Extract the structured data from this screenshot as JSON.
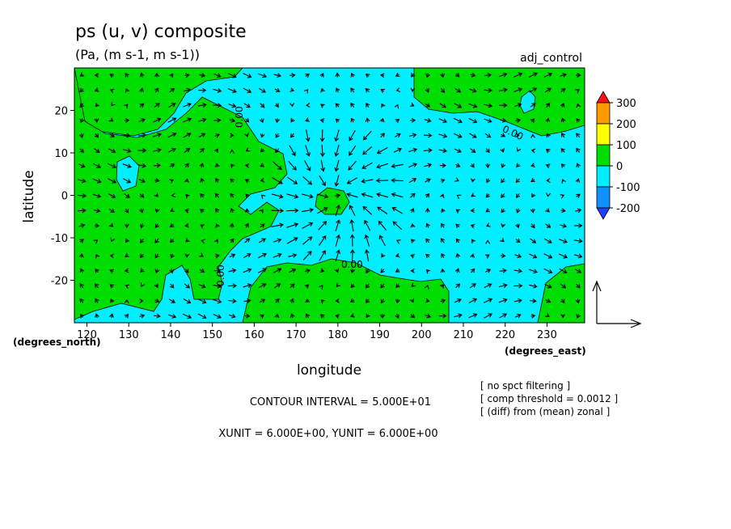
{
  "chart_data": {
    "type": "heatmap",
    "title": "ps (u, v) composite",
    "subtitle": "(Pa, (m s-1, m s-1))",
    "run_label": "adj_control",
    "xlabel": "longitude",
    "ylabel": "latitude",
    "x_unit_label": "(degrees_east)",
    "y_unit_label": "(degrees_north)",
    "xlim": [
      117,
      239
    ],
    "ylim": [
      -30,
      30
    ],
    "x_ticks": [
      120,
      130,
      140,
      150,
      160,
      170,
      180,
      190,
      200,
      210,
      220,
      230
    ],
    "y_ticks": [
      20,
      10,
      0,
      -10,
      -20
    ],
    "contour_labels": [
      "0.00",
      "0.00",
      "0.00",
      "0.00"
    ],
    "colorbar": {
      "labels": [
        "300",
        "200",
        "100",
        "0",
        "-100",
        "-200"
      ],
      "colors": [
        "#ff1010",
        "#ff9a00",
        "#ffff00",
        "#00dd00",
        "#00eeff",
        "#1090ff",
        "#1f3fff"
      ]
    },
    "field_colors": {
      "positive": "#00dd00",
      "negative": "#00eeff"
    },
    "notes": [
      "[ no spct filtering ]",
      "[ comp threshold = 0.0012 ]",
      "[ (diff) from (mean) zonal ]"
    ],
    "contour_interval": "CONTOUR INTERVAL = 5.000E+01",
    "vector_units": "XUNIT = 6.000E+00, YUNIT = 6.000E+00"
  }
}
